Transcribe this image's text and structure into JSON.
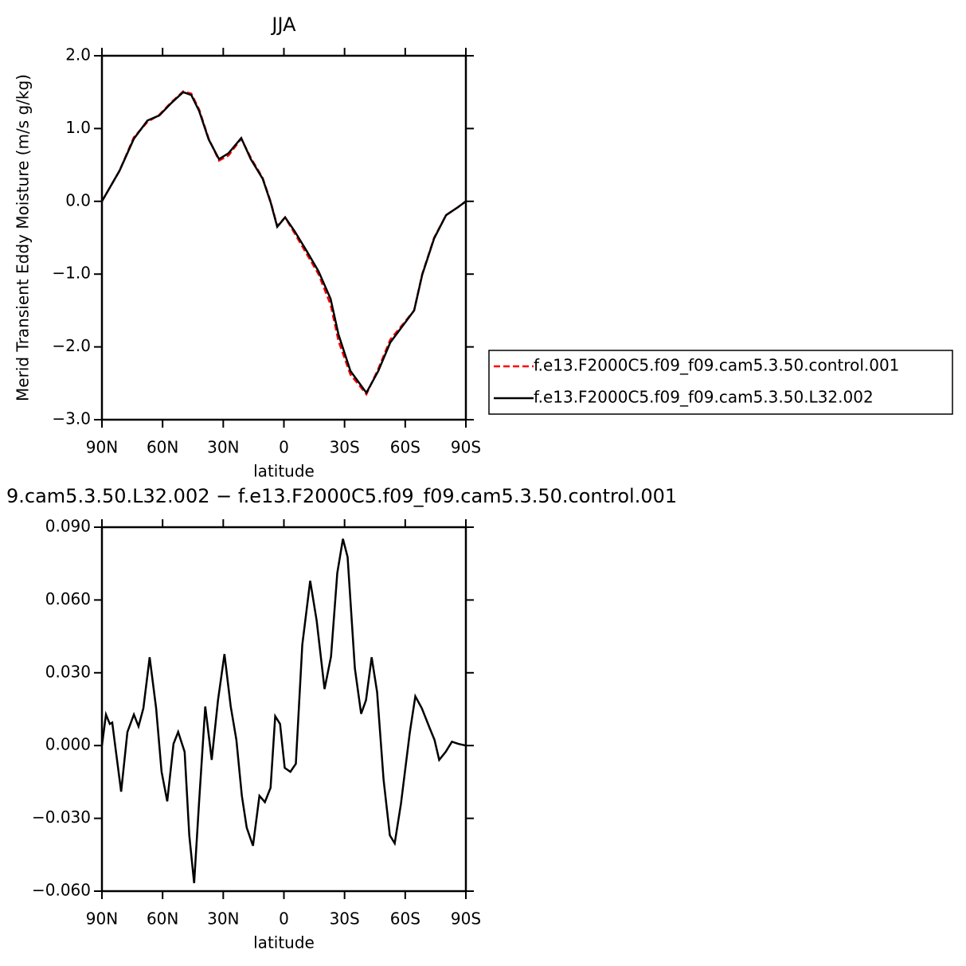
{
  "chart_data": [
    {
      "type": "line",
      "title": "JJA",
      "y_label": "Merid Transient Eddy Moisture (m/s g/kg)",
      "x_label": "latitude",
      "xlim": [
        90,
        -90
      ],
      "xticks": [
        {
          "value": 90,
          "label": "90N"
        },
        {
          "value": 60,
          "label": "60N"
        },
        {
          "value": 30,
          "label": "30N"
        },
        0,
        {
          "value": -30,
          "label": "30S"
        },
        {
          "value": -60,
          "label": "60S"
        },
        {
          "value": -90,
          "label": "90S"
        }
      ],
      "ylim": [
        -3,
        2
      ],
      "yticks": [
        {
          "value": -3,
          "label": "−3.0"
        },
        {
          "value": -2,
          "label": "−2.0"
        },
        {
          "value": -1,
          "label": "−1.0"
        },
        {
          "value": 0,
          "label": "0.0"
        },
        {
          "value": 1,
          "label": "1.0"
        },
        {
          "value": 2,
          "label": "2.0"
        }
      ],
      "legend": "right",
      "x": [
        90,
        81.3,
        74.2,
        67.5,
        61.6,
        55.7,
        49.8,
        45.8,
        41.9,
        37.2,
        32.1,
        27.4,
        21.1,
        16.4,
        10.5,
        6.5,
        3.3,
        -0.6,
        -5.3,
        -11.2,
        -17.1,
        -23.1,
        -27.0,
        -32.9,
        -40.8,
        -46.7,
        -52.6,
        -58.5,
        -64.4,
        -68.4,
        -74.3,
        -80.2,
        -86.1,
        -90
      ],
      "series": [
        {
          "name": "f.e13.F2000C5.f09_f09.cam5.3.50.control.001",
          "color": "#ff0000",
          "dash": true,
          "values": [
            0,
            0.42,
            0.88,
            1.09,
            1.19,
            1.36,
            1.51,
            1.48,
            1.26,
            0.86,
            0.56,
            0.63,
            0.86,
            0.6,
            0.32,
            -0.01,
            -0.34,
            -0.22,
            -0.44,
            -0.72,
            -1.0,
            -1.42,
            -1.92,
            -2.38,
            -2.65,
            -2.3,
            -1.9,
            -1.7,
            -1.5,
            -1.0,
            -0.5,
            -0.19,
            -0.08,
            0
          ]
        },
        {
          "name": "f.e13.F2000C5.f09_f09.cam5.3.50.L32.002",
          "color": "#000000",
          "dash": false,
          "values": [
            0,
            0.42,
            0.86,
            1.11,
            1.18,
            1.35,
            1.5,
            1.46,
            1.24,
            0.85,
            0.58,
            0.66,
            0.87,
            0.58,
            0.31,
            -0.02,
            -0.35,
            -0.22,
            -0.41,
            -0.68,
            -0.96,
            -1.34,
            -1.83,
            -2.33,
            -2.63,
            -2.33,
            -1.94,
            -1.72,
            -1.5,
            -1.01,
            -0.51,
            -0.19,
            -0.08,
            0
          ]
        }
      ]
    },
    {
      "type": "line",
      "title": "9.cam5.3.50.L32.002 − f.e13.F2000C5.f09_f09.cam5.3.50.control.001",
      "x_label": "latitude",
      "xlim": [
        90,
        -90
      ],
      "xticks": [
        {
          "value": 90,
          "label": "90N"
        },
        {
          "value": 60,
          "label": "60N"
        },
        {
          "value": 30,
          "label": "30N"
        },
        0,
        {
          "value": -30,
          "label": "30S"
        },
        {
          "value": -60,
          "label": "60S"
        },
        {
          "value": -90,
          "label": "90S"
        }
      ],
      "ylim": [
        -0.06,
        0.09
      ],
      "yticks": [
        {
          "value": -0.06,
          "label": "−0.060"
        },
        {
          "value": -0.03,
          "label": "−0.030"
        },
        {
          "value": 0,
          "label": "0.000"
        },
        {
          "value": 0.03,
          "label": "0.030"
        },
        {
          "value": 0.06,
          "label": "0.060"
        },
        {
          "value": 0.09,
          "label": "0.090"
        }
      ],
      "x": [
        90,
        88,
        86.1,
        84.9,
        83.3,
        80.5,
        77.4,
        74.2,
        71.9,
        69.5,
        66.4,
        63.2,
        60.5,
        57.7,
        54.6,
        52.3,
        49.1,
        46.8,
        44.4,
        42,
        38.9,
        35.7,
        32.6,
        29.4,
        26.3,
        23.5,
        20.8,
        18.4,
        15.3,
        12.1,
        9.4,
        6.6,
        4.3,
        1.9,
        -0.4,
        -3.2,
        -5.9,
        -9.1,
        -13,
        -16.2,
        -20.1,
        -23.3,
        -26.4,
        -29.2,
        -31.5,
        -35.1,
        -38.2,
        -40.6,
        -43.4,
        -46.1,
        -49.3,
        -52.4,
        -54.8,
        -57.9,
        -62.3,
        -65,
        -68.2,
        -72.1,
        -74.5,
        -76.8,
        -80,
        -83.1,
        -86.3,
        -90
      ],
      "series": [
        {
          "color": "#000000",
          "values": [
            0,
            0.0128,
            0.0089,
            0.0095,
            -0.001,
            -0.019,
            0.0056,
            0.0128,
            0.0079,
            0.0154,
            0.0364,
            0.0154,
            -0.0108,
            -0.023,
            0.0007,
            0.0056,
            -0.0026,
            -0.037,
            -0.0567,
            -0.0239,
            0.0161,
            -0.0059,
            0.0187,
            0.0377,
            0.0161,
            0.0023,
            -0.0207,
            -0.0338,
            -0.0413,
            -0.0207,
            -0.0233,
            -0.0174,
            0.0121,
            0.0089,
            -0.0092,
            -0.0108,
            -0.0075,
            0.0416,
            0.0679,
            0.0515,
            0.0233,
            0.0367,
            0.0711,
            0.0852,
            0.0777,
            0.0318,
            0.0131,
            0.0187,
            0.0364,
            0.022,
            -0.0141,
            -0.037,
            -0.0403,
            -0.0239,
            0.0056,
            0.0203,
            0.0154,
            0.0072,
            0.0023,
            -0.0059,
            -0.0026,
            0.0016,
            0.0007,
            0
          ]
        }
      ]
    }
  ]
}
